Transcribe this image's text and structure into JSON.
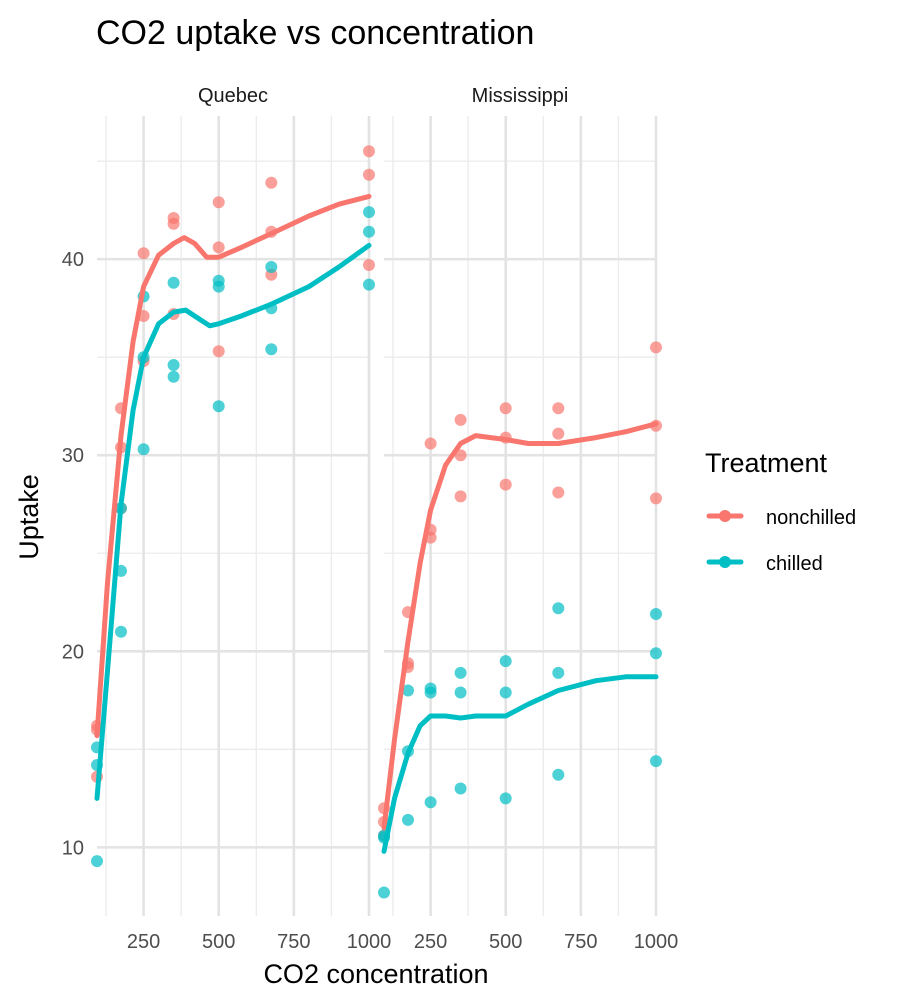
{
  "chart_data": {
    "type": "scatter",
    "title": "CO2 uptake vs concentration",
    "xlabel": "CO2 concentration",
    "ylabel": "Uptake",
    "xlim": [
      95,
      1000
    ],
    "ylim": [
      6.5,
      47.3
    ],
    "x_ticks": [
      250,
      500,
      750,
      1000
    ],
    "y_ticks": [
      10,
      20,
      30,
      40
    ],
    "grid": true,
    "legend": {
      "title": "Treatment",
      "position": "right",
      "entries": [
        {
          "label": "nonchilled",
          "color": "#F8766D"
        },
        {
          "label": "chilled",
          "color": "#00BFC4"
        }
      ]
    },
    "panels": [
      {
        "label": "Quebec",
        "points": [
          {
            "t": "nonchilled",
            "x": 95,
            "y": 16.0
          },
          {
            "t": "nonchilled",
            "x": 95,
            "y": 13.6
          },
          {
            "t": "nonchilled",
            "x": 95,
            "y": 16.2
          },
          {
            "t": "nonchilled",
            "x": 175,
            "y": 30.4
          },
          {
            "t": "nonchilled",
            "x": 175,
            "y": 27.3
          },
          {
            "t": "nonchilled",
            "x": 175,
            "y": 32.4
          },
          {
            "t": "nonchilled",
            "x": 250,
            "y": 34.8
          },
          {
            "t": "nonchilled",
            "x": 250,
            "y": 37.1
          },
          {
            "t": "nonchilled",
            "x": 250,
            "y": 40.3
          },
          {
            "t": "nonchilled",
            "x": 350,
            "y": 37.2
          },
          {
            "t": "nonchilled",
            "x": 350,
            "y": 41.8
          },
          {
            "t": "nonchilled",
            "x": 350,
            "y": 42.1
          },
          {
            "t": "nonchilled",
            "x": 500,
            "y": 35.3
          },
          {
            "t": "nonchilled",
            "x": 500,
            "y": 40.6
          },
          {
            "t": "nonchilled",
            "x": 500,
            "y": 42.9
          },
          {
            "t": "nonchilled",
            "x": 675,
            "y": 39.2
          },
          {
            "t": "nonchilled",
            "x": 675,
            "y": 41.4
          },
          {
            "t": "nonchilled",
            "x": 675,
            "y": 43.9
          },
          {
            "t": "nonchilled",
            "x": 1000,
            "y": 39.7
          },
          {
            "t": "nonchilled",
            "x": 1000,
            "y": 44.3
          },
          {
            "t": "nonchilled",
            "x": 1000,
            "y": 45.5
          },
          {
            "t": "chilled",
            "x": 95,
            "y": 14.2
          },
          {
            "t": "chilled",
            "x": 95,
            "y": 9.3
          },
          {
            "t": "chilled",
            "x": 95,
            "y": 15.1
          },
          {
            "t": "chilled",
            "x": 175,
            "y": 24.1
          },
          {
            "t": "chilled",
            "x": 175,
            "y": 27.3
          },
          {
            "t": "chilled",
            "x": 175,
            "y": 21.0
          },
          {
            "t": "chilled",
            "x": 250,
            "y": 30.3
          },
          {
            "t": "chilled",
            "x": 250,
            "y": 35.0
          },
          {
            "t": "chilled",
            "x": 250,
            "y": 38.1
          },
          {
            "t": "chilled",
            "x": 350,
            "y": 34.6
          },
          {
            "t": "chilled",
            "x": 350,
            "y": 38.8
          },
          {
            "t": "chilled",
            "x": 350,
            "y": 34.0
          },
          {
            "t": "chilled",
            "x": 500,
            "y": 32.5
          },
          {
            "t": "chilled",
            "x": 500,
            "y": 38.6
          },
          {
            "t": "chilled",
            "x": 500,
            "y": 38.9
          },
          {
            "t": "chilled",
            "x": 675,
            "y": 35.4
          },
          {
            "t": "chilled",
            "x": 675,
            "y": 37.5
          },
          {
            "t": "chilled",
            "x": 675,
            "y": 39.6
          },
          {
            "t": "chilled",
            "x": 1000,
            "y": 38.7
          },
          {
            "t": "chilled",
            "x": 1000,
            "y": 42.4
          },
          {
            "t": "chilled",
            "x": 1000,
            "y": 41.4
          }
        ],
        "smooth": [
          {
            "t": "nonchilled",
            "points": [
              [
                95,
                15.7
              ],
              [
                130,
                23.5
              ],
              [
                175,
                31.0
              ],
              [
                215,
                35.8
              ],
              [
                250,
                38.6
              ],
              [
                300,
                40.2
              ],
              [
                350,
                40.8
              ],
              [
                385,
                41.1
              ],
              [
                420,
                40.8
              ],
              [
                460,
                40.1
              ],
              [
                500,
                40.1
              ],
              [
                575,
                40.6
              ],
              [
                675,
                41.3
              ],
              [
                800,
                42.2
              ],
              [
                900,
                42.8
              ],
              [
                1000,
                43.2
              ]
            ]
          },
          {
            "t": "chilled",
            "points": [
              [
                95,
                12.5
              ],
              [
                130,
                19.0
              ],
              [
                175,
                27.5
              ],
              [
                215,
                32.3
              ],
              [
                250,
                35.0
              ],
              [
                300,
                36.7
              ],
              [
                350,
                37.3
              ],
              [
                390,
                37.4
              ],
              [
                430,
                37.0
              ],
              [
                470,
                36.6
              ],
              [
                500,
                36.7
              ],
              [
                575,
                37.1
              ],
              [
                675,
                37.7
              ],
              [
                800,
                38.6
              ],
              [
                900,
                39.6
              ],
              [
                1000,
                40.7
              ]
            ]
          }
        ]
      },
      {
        "label": "Mississippi",
        "points": [
          {
            "t": "nonchilled",
            "x": 95,
            "y": 12.0
          },
          {
            "t": "nonchilled",
            "x": 95,
            "y": 11.3
          },
          {
            "t": "nonchilled",
            "x": 95,
            "y": 10.6
          },
          {
            "t": "nonchilled",
            "x": 175,
            "y": 22.0
          },
          {
            "t": "nonchilled",
            "x": 175,
            "y": 19.4
          },
          {
            "t": "nonchilled",
            "x": 175,
            "y": 19.2
          },
          {
            "t": "nonchilled",
            "x": 250,
            "y": 30.6
          },
          {
            "t": "nonchilled",
            "x": 250,
            "y": 25.8
          },
          {
            "t": "nonchilled",
            "x": 250,
            "y": 26.2
          },
          {
            "t": "nonchilled",
            "x": 350,
            "y": 31.8
          },
          {
            "t": "nonchilled",
            "x": 350,
            "y": 30.0
          },
          {
            "t": "nonchilled",
            "x": 350,
            "y": 27.9
          },
          {
            "t": "nonchilled",
            "x": 500,
            "y": 32.4
          },
          {
            "t": "nonchilled",
            "x": 500,
            "y": 30.9
          },
          {
            "t": "nonchilled",
            "x": 500,
            "y": 28.5
          },
          {
            "t": "nonchilled",
            "x": 675,
            "y": 31.1
          },
          {
            "t": "nonchilled",
            "x": 675,
            "y": 32.4
          },
          {
            "t": "nonchilled",
            "x": 675,
            "y": 28.1
          },
          {
            "t": "nonchilled",
            "x": 1000,
            "y": 31.5
          },
          {
            "t": "nonchilled",
            "x": 1000,
            "y": 35.5
          },
          {
            "t": "nonchilled",
            "x": 1000,
            "y": 27.8
          },
          {
            "t": "chilled",
            "x": 95,
            "y": 10.5
          },
          {
            "t": "chilled",
            "x": 95,
            "y": 7.7
          },
          {
            "t": "chilled",
            "x": 95,
            "y": 10.6
          },
          {
            "t": "chilled",
            "x": 175,
            "y": 14.9
          },
          {
            "t": "chilled",
            "x": 175,
            "y": 11.4
          },
          {
            "t": "chilled",
            "x": 175,
            "y": 18.0
          },
          {
            "t": "chilled",
            "x": 250,
            "y": 18.1
          },
          {
            "t": "chilled",
            "x": 250,
            "y": 12.3
          },
          {
            "t": "chilled",
            "x": 250,
            "y": 17.9
          },
          {
            "t": "chilled",
            "x": 350,
            "y": 18.9
          },
          {
            "t": "chilled",
            "x": 350,
            "y": 13.0
          },
          {
            "t": "chilled",
            "x": 350,
            "y": 17.9
          },
          {
            "t": "chilled",
            "x": 500,
            "y": 19.5
          },
          {
            "t": "chilled",
            "x": 500,
            "y": 12.5
          },
          {
            "t": "chilled",
            "x": 500,
            "y": 17.9
          },
          {
            "t": "chilled",
            "x": 675,
            "y": 22.2
          },
          {
            "t": "chilled",
            "x": 675,
            "y": 13.7
          },
          {
            "t": "chilled",
            "x": 675,
            "y": 18.9
          },
          {
            "t": "chilled",
            "x": 1000,
            "y": 21.9
          },
          {
            "t": "chilled",
            "x": 1000,
            "y": 14.4
          },
          {
            "t": "chilled",
            "x": 1000,
            "y": 19.9
          }
        ],
        "smooth": [
          {
            "t": "nonchilled",
            "points": [
              [
                95,
                11.0
              ],
              [
                130,
                15.5
              ],
              [
                175,
                20.5
              ],
              [
                215,
                24.5
              ],
              [
                250,
                27.2
              ],
              [
                300,
                29.5
              ],
              [
                350,
                30.6
              ],
              [
                400,
                31.0
              ],
              [
                450,
                30.9
              ],
              [
                500,
                30.8
              ],
              [
                575,
                30.6
              ],
              [
                675,
                30.6
              ],
              [
                800,
                30.9
              ],
              [
                900,
                31.2
              ],
              [
                1000,
                31.6
              ]
            ]
          },
          {
            "t": "chilled",
            "points": [
              [
                95,
                9.8
              ],
              [
                130,
                12.5
              ],
              [
                175,
                14.8
              ],
              [
                215,
                16.2
              ],
              [
                250,
                16.7
              ],
              [
                300,
                16.7
              ],
              [
                350,
                16.6
              ],
              [
                400,
                16.7
              ],
              [
                450,
                16.7
              ],
              [
                500,
                16.7
              ],
              [
                575,
                17.3
              ],
              [
                675,
                18.0
              ],
              [
                800,
                18.5
              ],
              [
                900,
                18.7
              ],
              [
                1000,
                18.7
              ]
            ]
          }
        ]
      }
    ]
  }
}
